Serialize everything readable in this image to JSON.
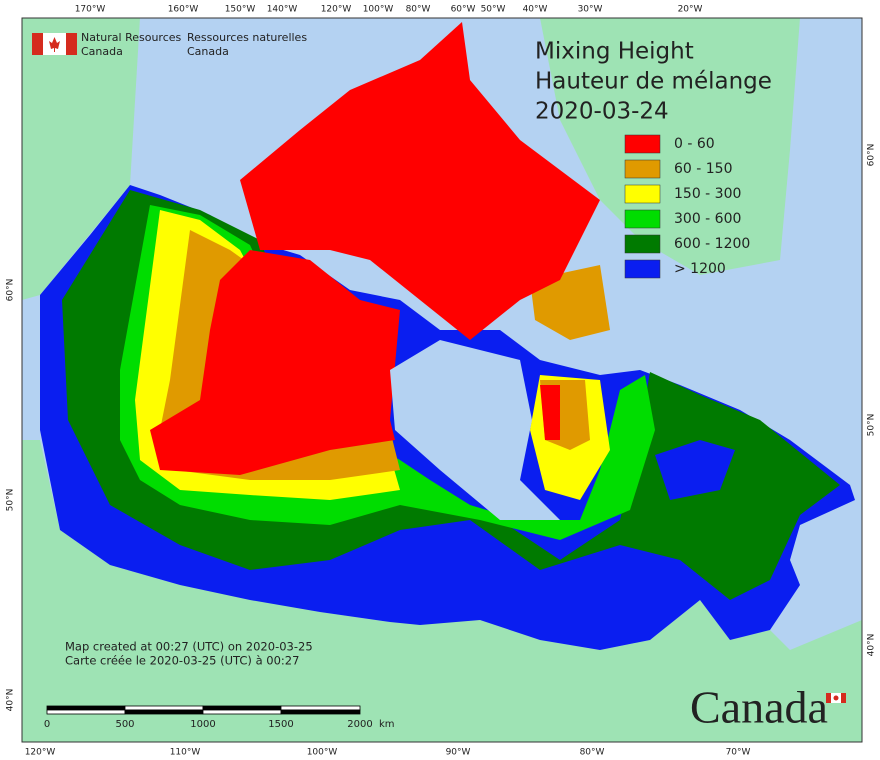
{
  "header": {
    "org_en": [
      "Natural Resources",
      "Canada"
    ],
    "org_fr": [
      "Ressources naturelles",
      "Canada"
    ]
  },
  "title": [
    "Mixing Height",
    "Hauteur de mélange",
    "2020-03-24"
  ],
  "legend": [
    {
      "label": "0 - 60",
      "color": "#ff0000"
    },
    {
      "label": "60 - 150",
      "color": "#e09a00"
    },
    {
      "label": "150 - 300",
      "color": "#ffff00"
    },
    {
      "label": "300 - 600",
      "color": "#00dd00"
    },
    {
      "label": "600 - 1200",
      "color": "#007a00"
    },
    {
      "label": "> 1200",
      "color": "#0a1ef0"
    }
  ],
  "graticule": {
    "top": [
      "170°W",
      "160°W",
      "150°W",
      "140°W",
      "120°W",
      "100°W",
      "80°W",
      "60°W",
      "50°W",
      "40°W",
      "30°W",
      "20°W"
    ],
    "bottom": [
      "120°W",
      "110°W",
      "100°W",
      "90°W",
      "80°W",
      "70°W"
    ],
    "right": [
      "60°N",
      "50°N",
      "40°N"
    ],
    "left": [
      "60°N",
      "50°N",
      "40°N"
    ]
  },
  "credits": [
    "Map created at 00:27 (UTC) on 2020-03-25",
    "Carte créée le 2020-03-25 (UTC) à 00:27"
  ],
  "scale_bar": {
    "labels": [
      "0",
      "500",
      "1000",
      "1500",
      "2000"
    ],
    "unit": "km"
  },
  "wordmark": "Canada"
}
